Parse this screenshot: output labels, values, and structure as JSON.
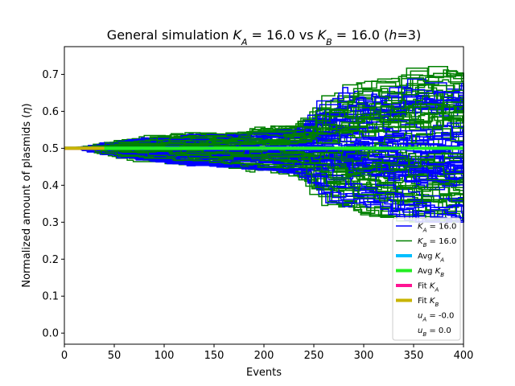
{
  "chart_data": {
    "type": "line",
    "title": "General simulation K_A = 16.0 vs K_B = 16.0 (h=3)",
    "title_parts": {
      "prefix": "General simulation ",
      "k": "K",
      "sub_a": "A",
      "sub_b": "B",
      "eq_a": " = 16.0 vs ",
      "eq_b": " = 16.0 (",
      "h": "h",
      "suffix": "=3)"
    },
    "xlabel": "Events",
    "ylabel": "Normalized amount of plasmids (η)",
    "ylabel_parts": {
      "text": "Normalized amount of plasmids (",
      "eta": "η",
      "close": ")"
    },
    "xlim": [
      0,
      400
    ],
    "ylim": [
      -0.03,
      0.775
    ],
    "xticks": [
      0,
      50,
      100,
      150,
      200,
      250,
      300,
      350,
      400
    ],
    "yticks": [
      0.0,
      0.1,
      0.2,
      0.3,
      0.4,
      0.5,
      0.6,
      0.7
    ],
    "grid": false,
    "legend_position": "lower right",
    "legend": [
      {
        "label": "K_A = 16.0",
        "k": "K",
        "sub": "A",
        "rest": " = 16.0",
        "color": "#0000ff",
        "style": "thin"
      },
      {
        "label": "K_B = 16.0",
        "k": "K",
        "sub": "B",
        "rest": " = 16.0",
        "color": "#008000",
        "style": "thin"
      },
      {
        "label": "Avg K_A",
        "pre": "Avg ",
        "k": "K",
        "sub": "A",
        "rest": "",
        "color": "#00bfff",
        "style": "thick"
      },
      {
        "label": "Avg K_B",
        "pre": "Avg ",
        "k": "K",
        "sub": "B",
        "rest": "",
        "color": "#22ee22",
        "style": "thick"
      },
      {
        "label": "Fit K_A",
        "pre": "Fit ",
        "k": "K",
        "sub": "A",
        "rest": "",
        "color": "#ff1493",
        "style": "thick"
      },
      {
        "label": "Fit K_B",
        "pre": "Fit ",
        "k": "K",
        "sub": "B",
        "rest": "",
        "color": "#c8b400",
        "style": "thick"
      },
      {
        "label": "u_A = -0.0",
        "k": "u",
        "sub": "A",
        "rest": " = -0.0",
        "color": "none",
        "style": "none"
      },
      {
        "label": "u_B = 0.0",
        "k": "u",
        "sub": "B",
        "rest": " = 0.0",
        "color": "none",
        "style": "none"
      }
    ],
    "series": [
      {
        "name": "K_A = 16.0",
        "color": "#0000ff",
        "trajectories": 60,
        "start": 0.5,
        "envelope_x": [
          0,
          50,
          100,
          150,
          200,
          230,
          250,
          300,
          350,
          400
        ],
        "envelope_upper": [
          0.5,
          0.53,
          0.535,
          0.54,
          0.55,
          0.57,
          0.69,
          0.67,
          0.7,
          0.69
        ],
        "envelope_lower": [
          0.5,
          0.47,
          0.455,
          0.45,
          0.44,
          0.43,
          0.36,
          0.33,
          0.3,
          0.3
        ]
      },
      {
        "name": "K_B = 16.0",
        "color": "#008000",
        "trajectories": 60,
        "start": 0.5,
        "envelope_x": [
          0,
          50,
          100,
          150,
          200,
          230,
          250,
          300,
          350,
          400
        ],
        "envelope_upper": [
          0.5,
          0.53,
          0.54,
          0.545,
          0.56,
          0.575,
          0.66,
          0.68,
          0.73,
          0.7
        ],
        "envelope_lower": [
          0.5,
          0.465,
          0.45,
          0.445,
          0.43,
          0.42,
          0.32,
          0.31,
          0.3,
          0.3
        ]
      },
      {
        "name": "Avg K_A",
        "color": "#00bfff",
        "x": [
          0,
          400
        ],
        "values": [
          0.5,
          0.5
        ]
      },
      {
        "name": "Avg K_B",
        "color": "#22ee22",
        "x": [
          0,
          400
        ],
        "values": [
          0.5,
          0.5
        ]
      },
      {
        "name": "Fit K_A",
        "color": "#ff1493",
        "x": [
          0,
          35
        ],
        "values": [
          0.5,
          0.5
        ]
      },
      {
        "name": "Fit K_B",
        "color": "#c8b400",
        "x": [
          0,
          40
        ],
        "values": [
          0.5,
          0.5
        ]
      }
    ]
  }
}
